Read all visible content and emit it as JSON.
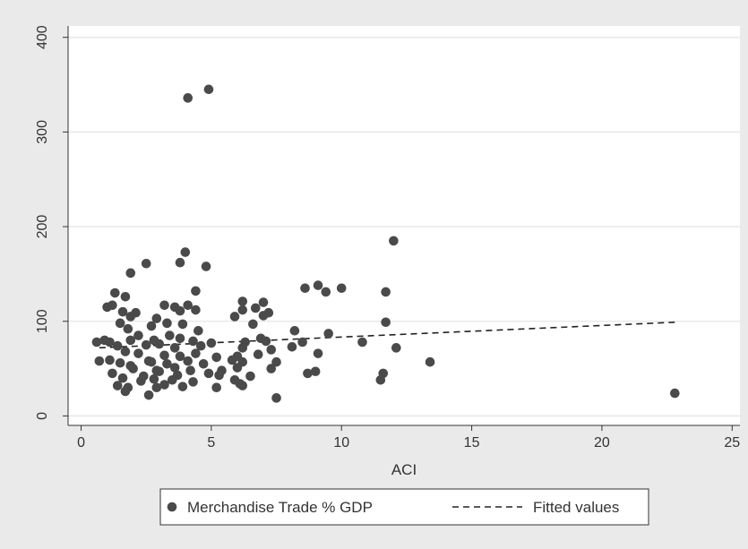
{
  "colors": {
    "background": "#eaeaea",
    "plot_background": "#ffffff",
    "grid": "#e6e6e6",
    "axis": "#333333",
    "marker": "#4a4a4a",
    "fit_line": "#222222"
  },
  "chart_data": {
    "type": "scatter",
    "xlabel": "ACI",
    "ylabel": "",
    "xlim": [
      -0.5,
      25.3
    ],
    "ylim": [
      -10,
      412
    ],
    "x_ticks": [
      0,
      5,
      10,
      15,
      20,
      25
    ],
    "y_ticks": [
      0,
      100,
      200,
      300,
      400
    ],
    "grid": "horizontal",
    "legend_position": "bottom",
    "series": [
      {
        "name": "Merchandise Trade % GDP",
        "kind": "scatter",
        "marker": "filled-circle",
        "points": [
          [
            4.1,
            336
          ],
          [
            4.9,
            345
          ],
          [
            12.0,
            185
          ],
          [
            4.0,
            173
          ],
          [
            3.8,
            162
          ],
          [
            2.5,
            161
          ],
          [
            4.8,
            158
          ],
          [
            1.9,
            151
          ],
          [
            9.1,
            138
          ],
          [
            8.6,
            135
          ],
          [
            10.0,
            135
          ],
          [
            9.4,
            131
          ],
          [
            11.7,
            131
          ],
          [
            4.4,
            132
          ],
          [
            1.3,
            130
          ],
          [
            1.7,
            126
          ],
          [
            6.2,
            121
          ],
          [
            7.0,
            120
          ],
          [
            1.2,
            117
          ],
          [
            1.0,
            115
          ],
          [
            3.2,
            117
          ],
          [
            3.6,
            115
          ],
          [
            4.1,
            117
          ],
          [
            4.4,
            112
          ],
          [
            6.7,
            114
          ],
          [
            6.2,
            112
          ],
          [
            7.2,
            109
          ],
          [
            1.6,
            110
          ],
          [
            2.1,
            109
          ],
          [
            3.8,
            111
          ],
          [
            1.9,
            105
          ],
          [
            2.9,
            103
          ],
          [
            5.9,
            105
          ],
          [
            7.0,
            106
          ],
          [
            11.7,
            99
          ],
          [
            1.5,
            98
          ],
          [
            3.3,
            98
          ],
          [
            3.9,
            97
          ],
          [
            6.6,
            97
          ],
          [
            2.7,
            95
          ],
          [
            1.8,
            92
          ],
          [
            4.5,
            90
          ],
          [
            8.2,
            90
          ],
          [
            9.5,
            87
          ],
          [
            2.2,
            85
          ],
          [
            3.4,
            85
          ],
          [
            6.9,
            82
          ],
          [
            0.9,
            80
          ],
          [
            1.1,
            78
          ],
          [
            1.9,
            80
          ],
          [
            2.8,
            80
          ],
          [
            3.8,
            82
          ],
          [
            4.3,
            79
          ],
          [
            6.3,
            78
          ],
          [
            7.1,
            79
          ],
          [
            8.5,
            78
          ],
          [
            10.8,
            78
          ],
          [
            0.6,
            78
          ],
          [
            1.4,
            74
          ],
          [
            2.5,
            75
          ],
          [
            3.0,
            76
          ],
          [
            3.6,
            72
          ],
          [
            4.6,
            74
          ],
          [
            5.0,
            77
          ],
          [
            6.2,
            72
          ],
          [
            7.3,
            70
          ],
          [
            8.1,
            73
          ],
          [
            12.1,
            72
          ],
          [
            1.7,
            68
          ],
          [
            2.2,
            66
          ],
          [
            3.2,
            64
          ],
          [
            3.8,
            63
          ],
          [
            4.4,
            66
          ],
          [
            5.2,
            62
          ],
          [
            6.0,
            63
          ],
          [
            6.8,
            65
          ],
          [
            9.1,
            66
          ],
          [
            2.6,
            58
          ],
          [
            1.1,
            59
          ],
          [
            0.7,
            58
          ],
          [
            1.5,
            56
          ],
          [
            1.9,
            53
          ],
          [
            2.7,
            57
          ],
          [
            3.3,
            55
          ],
          [
            4.1,
            58
          ],
          [
            4.7,
            55
          ],
          [
            5.8,
            59
          ],
          [
            6.2,
            57
          ],
          [
            7.5,
            57
          ],
          [
            13.4,
            57
          ],
          [
            2.0,
            50
          ],
          [
            2.9,
            48
          ],
          [
            3.6,
            51
          ],
          [
            3.0,
            47
          ],
          [
            4.2,
            48
          ],
          [
            5.4,
            48
          ],
          [
            6.0,
            51
          ],
          [
            7.3,
            50
          ],
          [
            1.2,
            45
          ],
          [
            2.4,
            42
          ],
          [
            3.7,
            43
          ],
          [
            4.9,
            45
          ],
          [
            5.3,
            43
          ],
          [
            6.5,
            42
          ],
          [
            8.7,
            45
          ],
          [
            9.0,
            47
          ],
          [
            11.6,
            45
          ],
          [
            1.6,
            40
          ],
          [
            2.3,
            37
          ],
          [
            2.8,
            39
          ],
          [
            3.5,
            38
          ],
          [
            4.3,
            36
          ],
          [
            5.9,
            38
          ],
          [
            6.1,
            34
          ],
          [
            11.5,
            38
          ],
          [
            1.4,
            32
          ],
          [
            1.8,
            30
          ],
          [
            2.9,
            30
          ],
          [
            3.2,
            33
          ],
          [
            3.9,
            31
          ],
          [
            5.2,
            30
          ],
          [
            6.2,
            32
          ],
          [
            1.7,
            26
          ],
          [
            2.6,
            22
          ],
          [
            7.5,
            19
          ],
          [
            22.8,
            24
          ]
        ]
      },
      {
        "name": "Fitted values",
        "kind": "line",
        "style": "dashed",
        "points": [
          [
            0.7,
            72
          ],
          [
            22.8,
            99
          ]
        ]
      }
    ]
  }
}
